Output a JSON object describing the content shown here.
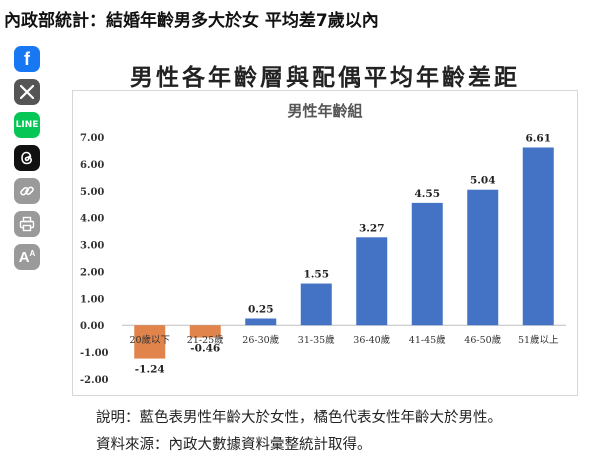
{
  "headline": "內政部統計：結婚年齡男多大於女 平均差7歲以內",
  "share": {
    "facebook": "f",
    "line": "LINE",
    "font_size": "A"
  },
  "colors": {
    "positive": "#4472c4",
    "negative": "#e0844b"
  },
  "chart_data": {
    "type": "bar",
    "title": "男性各年齡層與配偶平均年齡差距",
    "subtitle": "男性年齡組",
    "categories": [
      "20歲以下",
      "21-25歲",
      "26-30歲",
      "31-35歲",
      "36-40歲",
      "41-45歲",
      "46-50歲",
      "51歲以上"
    ],
    "values": [
      -1.24,
      -0.46,
      0.25,
      1.55,
      3.27,
      4.55,
      5.04,
      6.61
    ],
    "value_labels": [
      "-1.24",
      "-0.46",
      "0.25",
      "1.55",
      "3.27",
      "4.55",
      "5.04",
      "6.61"
    ],
    "yticks": [
      "7.00",
      "6.00",
      "5.00",
      "4.00",
      "3.00",
      "2.00",
      "1.00",
      "0.00",
      "-1.00",
      "-2.00"
    ],
    "ylim": [
      -2,
      7
    ],
    "grid": false,
    "legend": "none"
  },
  "notes": {
    "explanation": "說明：藍色表男性年齡大於女性，橘色代表女性年齡大於男性。",
    "source": "資料來源：內政大數據資料彙整統計取得。"
  }
}
